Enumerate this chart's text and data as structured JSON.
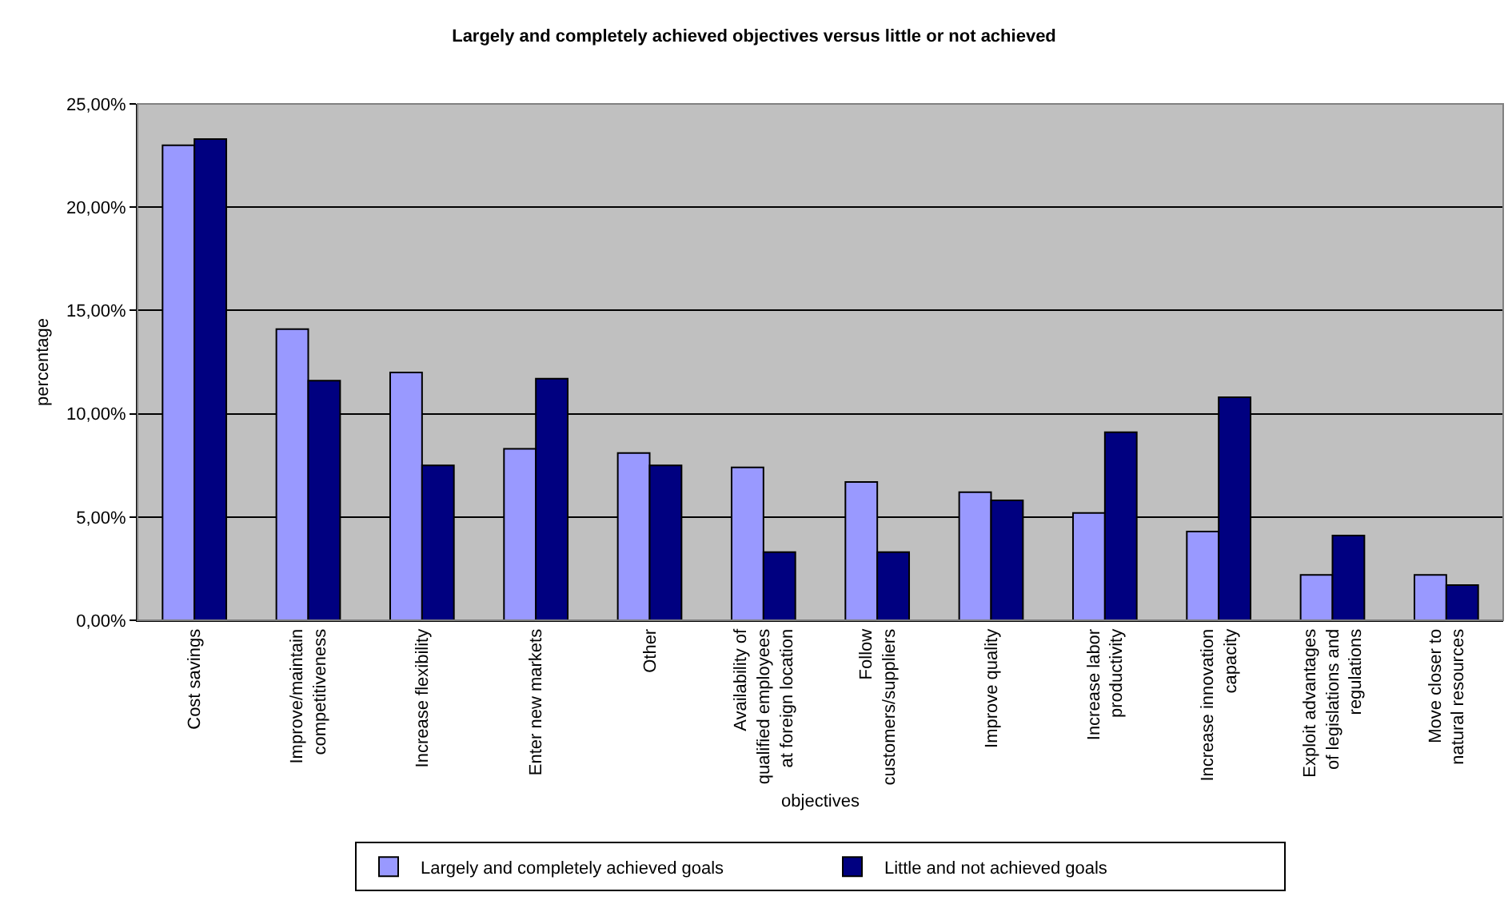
{
  "chart_data": {
    "type": "bar",
    "title": "Largely and completely achieved objectives versus little or not achieved",
    "xlabel": "objectives",
    "ylabel": "percentage",
    "categories": [
      "Cost savings",
      "Improve/maintain competitiveness",
      "Increase flexibility",
      "Enter new markets",
      "Other",
      "Availability of qualified employees at foreign location",
      "Follow customers/suppliers",
      "Improve quality",
      "Increase labor productivity",
      "Increase innovation capacity",
      "Exploit advantages of legislations and regulations",
      "Move closer to natural resources"
    ],
    "series": [
      {
        "name": "Largely and completely achieved goals",
        "color": "#9999ff",
        "values": [
          23.0,
          14.1,
          12.0,
          8.3,
          8.1,
          7.4,
          6.7,
          6.2,
          5.2,
          4.3,
          2.2,
          2.2
        ]
      },
      {
        "name": "Little and not achieved goals",
        "color": "#000080",
        "values": [
          23.3,
          11.6,
          7.5,
          11.7,
          7.5,
          3.3,
          3.3,
          5.8,
          9.1,
          10.8,
          4.1,
          1.7
        ]
      }
    ],
    "ylim": [
      0,
      25
    ],
    "yticks": [
      {
        "value": 0,
        "label": "0,00%"
      },
      {
        "value": 5,
        "label": "5,00%"
      },
      {
        "value": 10,
        "label": "10,00%"
      },
      {
        "value": 15,
        "label": "15,00%"
      },
      {
        "value": 20,
        "label": "20,00%"
      },
      {
        "value": 25,
        "label": "25,00%"
      }
    ],
    "grid": "y",
    "legend": "bottom"
  }
}
